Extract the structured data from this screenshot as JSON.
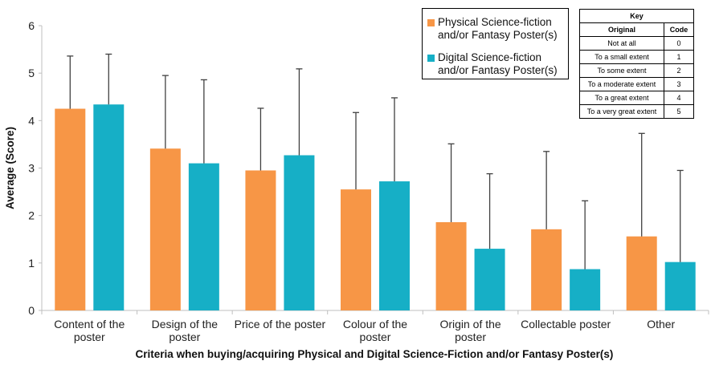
{
  "chart_data": {
    "type": "bar",
    "xlabel": "Criteria when buying/acquiring Physical and Digital Science-Fiction and/or Fantasy Poster(s)",
    "ylabel": "Average (Score)",
    "ylim": [
      0,
      6
    ],
    "yticks": [
      "0",
      "1",
      "2",
      "3",
      "4",
      "5",
      "6"
    ],
    "grid": false,
    "legend_position": "top-right",
    "error_bars": true,
    "categories": [
      [
        "Content of the",
        "poster"
      ],
      [
        "Design of the",
        "poster"
      ],
      [
        "Price of the poster"
      ],
      [
        "Colour of the",
        "poster"
      ],
      [
        "Origin of the",
        "poster"
      ],
      [
        "Collectable poster"
      ],
      [
        "Other"
      ]
    ],
    "series": [
      {
        "name": [
          "Physical Science-fiction",
          "and/or Fantasy Poster(s)"
        ],
        "color": "#F79646",
        "values": [
          4.25,
          3.41,
          2.95,
          2.55,
          1.86,
          1.71,
          1.56
        ],
        "error_upper": [
          5.36,
          4.95,
          4.26,
          4.17,
          3.51,
          3.35,
          3.73
        ]
      },
      {
        "name": [
          "Digital Science-fiction",
          "and/or Fantasy Poster(s)"
        ],
        "color": "#16AFC6",
        "values": [
          4.34,
          3.1,
          3.27,
          2.72,
          1.3,
          0.87,
          1.02
        ],
        "error_upper": [
          5.4,
          4.86,
          5.09,
          4.48,
          2.88,
          2.31,
          2.95
        ]
      }
    ]
  },
  "key_table": {
    "title": "Key",
    "headers": [
      "Original",
      "Code"
    ],
    "rows": [
      [
        "Not at all",
        "0"
      ],
      [
        "To a small extent",
        "1"
      ],
      [
        "To some extent",
        "2"
      ],
      [
        "To a moderate extent",
        "3"
      ],
      [
        "To a great extent",
        "4"
      ],
      [
        "To a very great extent",
        "5"
      ]
    ]
  }
}
